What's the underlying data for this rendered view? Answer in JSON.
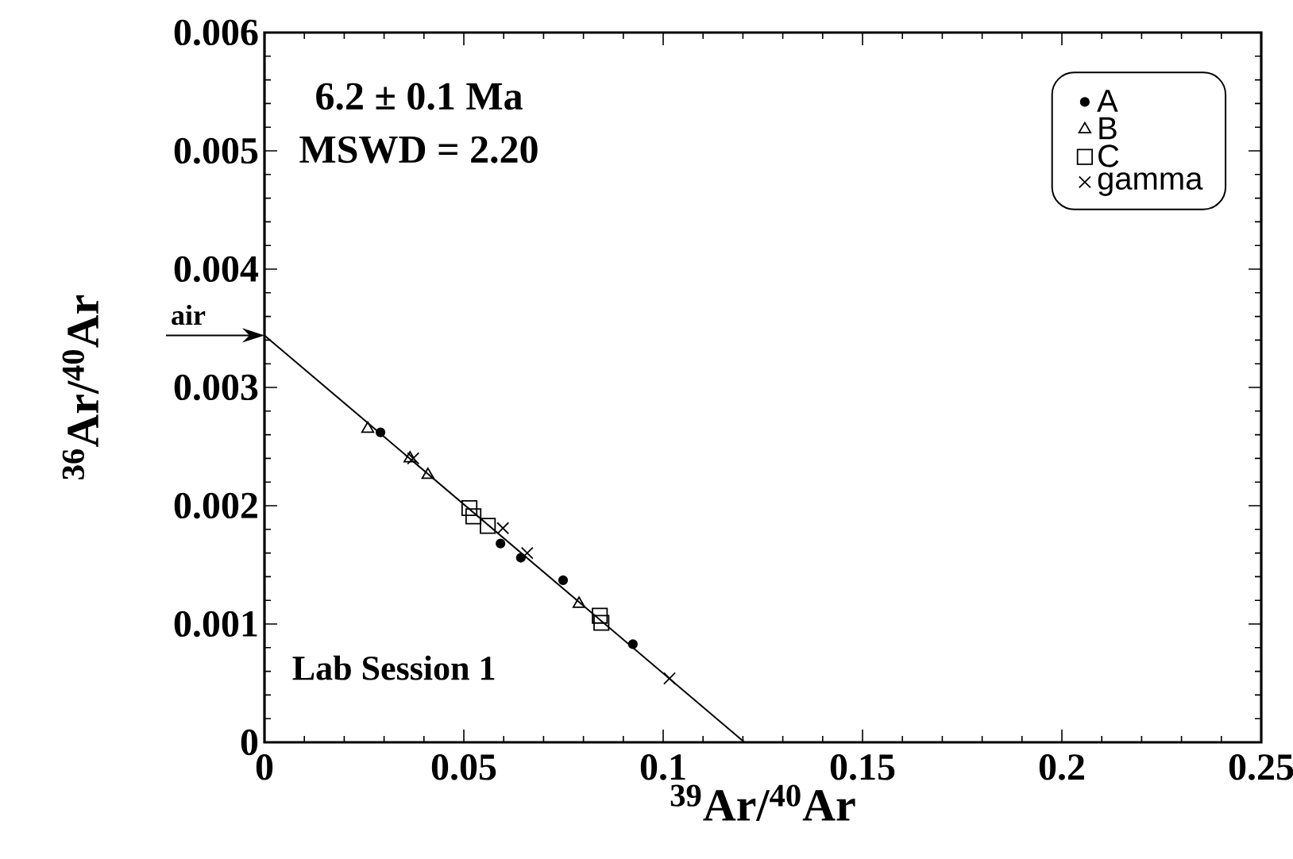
{
  "chart_data": {
    "type": "scatter",
    "xlabel": "$^{39}$Ar/$^{40}$Ar",
    "ylabel": "$^{36}$Ar/$^{40}$Ar",
    "xlim": [
      0,
      0.25
    ],
    "ylim": [
      0,
      0.006
    ],
    "xticks": [
      0,
      0.05,
      0.1,
      0.15,
      0.2,
      0.25
    ],
    "yticks": [
      0,
      0.001,
      0.002,
      0.003,
      0.004,
      0.005,
      0.006
    ],
    "legend": "top right",
    "grid": false,
    "annotations": [
      "6.2 ± 0.1 Ma",
      "MSWD = 2.20",
      "Lab Session 1",
      {
        "text": "air",
        "x": 0,
        "y": 0.00344
      }
    ],
    "series": [
      {
        "name": "A",
        "color": "#000000",
        "marker": "circle",
        "x": [
          0.0291,
          0.0592,
          0.0643,
          0.0749,
          0.0924
        ],
        "values": [
          0.00262,
          0.00168,
          0.00156,
          0.00137,
          0.00083
        ]
      },
      {
        "name": "B",
        "color": "#000000",
        "marker": "triangle",
        "x": [
          0.0259,
          0.0365,
          0.041,
          0.0789
        ],
        "values": [
          0.00265,
          0.0024,
          0.00226,
          0.00117
        ]
      },
      {
        "name": "C",
        "color": "#000000",
        "marker": "square",
        "x": [
          0.0514,
          0.0524,
          0.056,
          0.0841,
          0.0845
        ],
        "values": [
          0.00198,
          0.00191,
          0.00183,
          0.00107,
          0.00101
        ]
      },
      {
        "name": "gamma",
        "color": "#000000",
        "marker": "cross",
        "x": [
          0.0373,
          0.0598,
          0.0659,
          0.1016
        ],
        "values": [
          0.0024,
          0.00181,
          0.0016,
          0.00054
        ]
      },
      {
        "type": "line",
        "color": "#000000",
        "marker": "none",
        "line_style": "solid",
        "x": [
          0,
          0.1204
        ],
        "values": [
          0.00344,
          0
        ]
      }
    ]
  }
}
